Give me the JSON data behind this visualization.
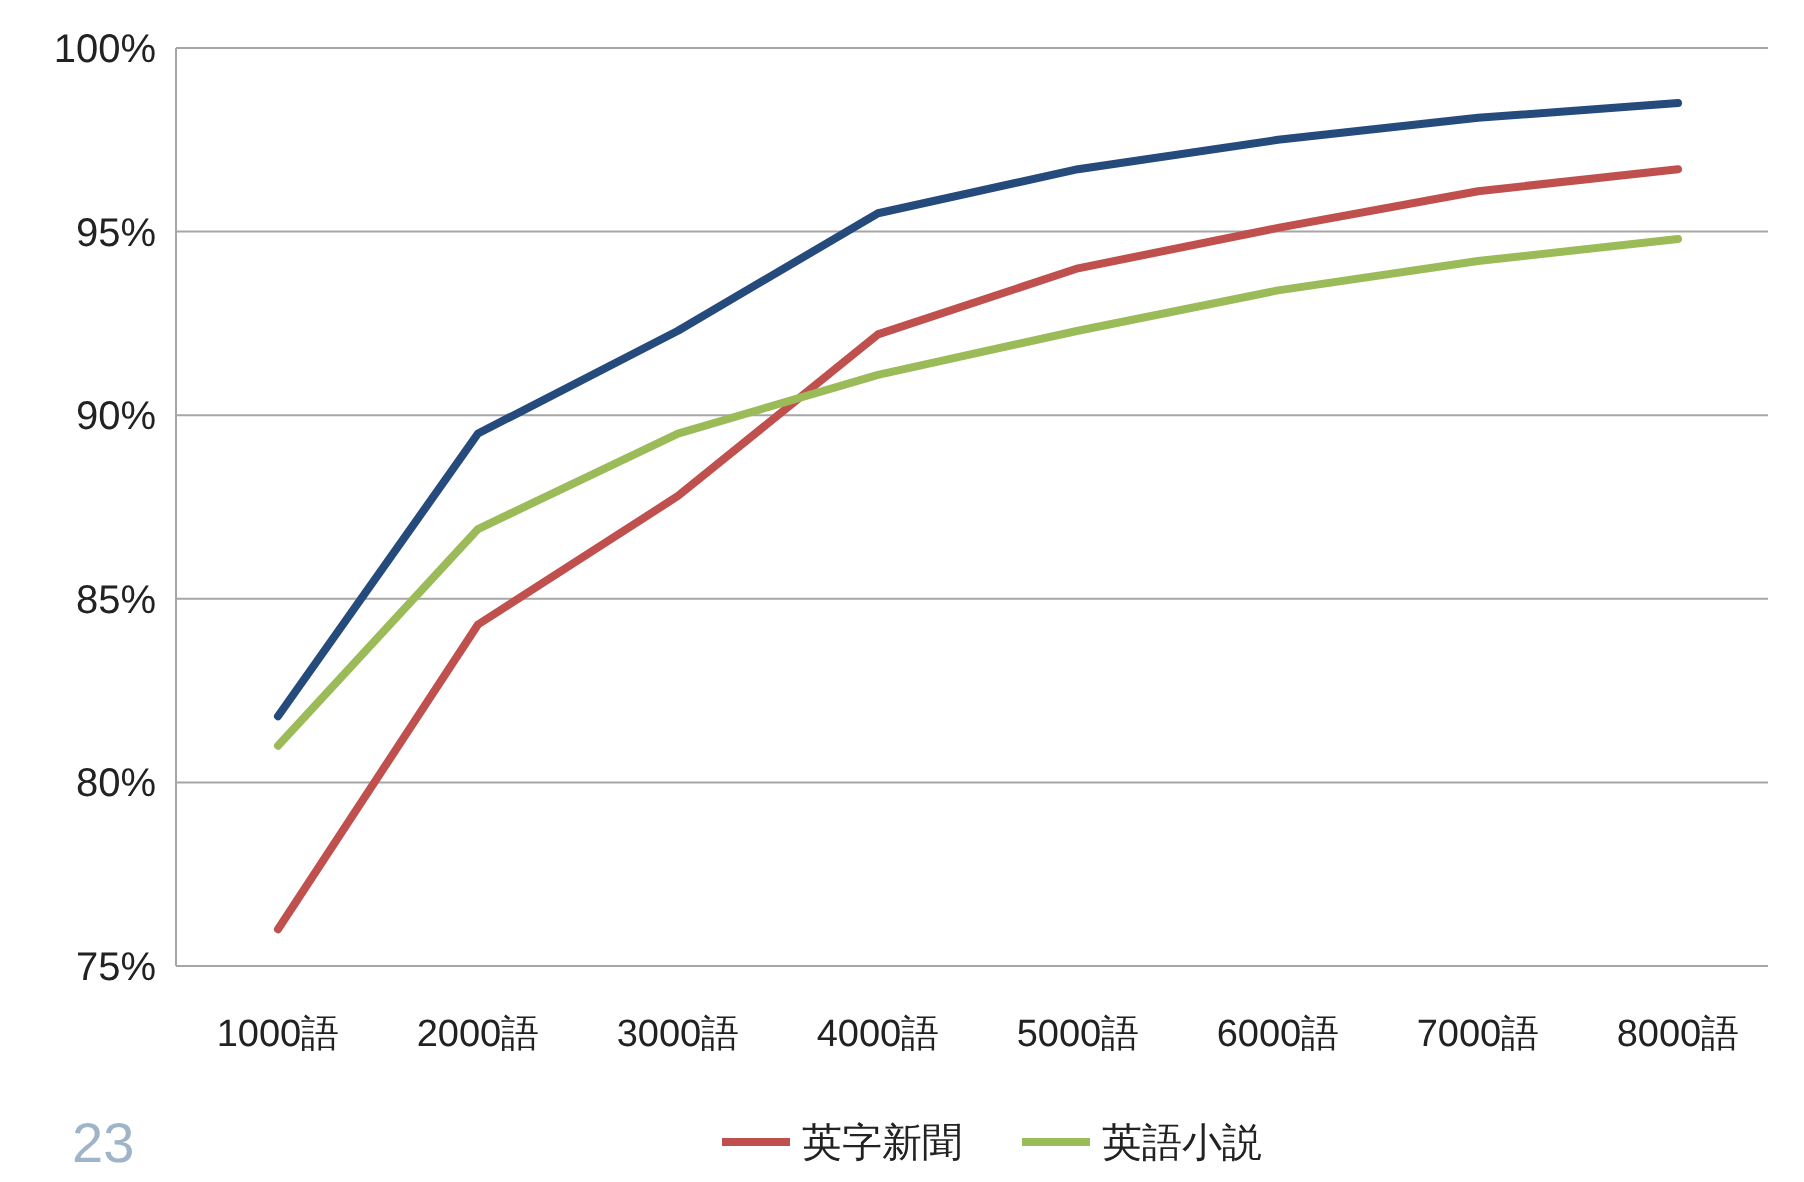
{
  "chart_data": {
    "type": "line",
    "categories": [
      "1000語",
      "2000語",
      "3000語",
      "4000語",
      "5000語",
      "6000語",
      "7000語",
      "8000語"
    ],
    "series": [
      {
        "color": "#254a7c",
        "values": [
          81.8,
          89.5,
          92.3,
          95.5,
          96.7,
          97.5,
          98.1,
          98.5
        ]
      },
      {
        "name": "英字新聞",
        "color": "#c0504d",
        "values": [
          76.0,
          84.3,
          87.8,
          92.2,
          94.0,
          95.1,
          96.1,
          96.7
        ]
      },
      {
        "name": "英語小説",
        "color": "#9bbb59",
        "values": [
          81.0,
          86.9,
          89.5,
          91.1,
          92.3,
          93.4,
          94.2,
          94.8
        ]
      }
    ],
    "ylim": [
      75,
      100
    ],
    "yticks": [
      {
        "value": 75,
        "label": "75%"
      },
      {
        "value": 80,
        "label": "80%"
      },
      {
        "value": 85,
        "label": "85%"
      },
      {
        "value": 90,
        "label": "90%"
      },
      {
        "value": 95,
        "label": "95%"
      },
      {
        "value": 100,
        "label": "100%"
      }
    ],
    "grid": "y",
    "legend": "bottom",
    "marker": "none",
    "line_style": "solid",
    "annotations": [
      "23"
    ]
  }
}
